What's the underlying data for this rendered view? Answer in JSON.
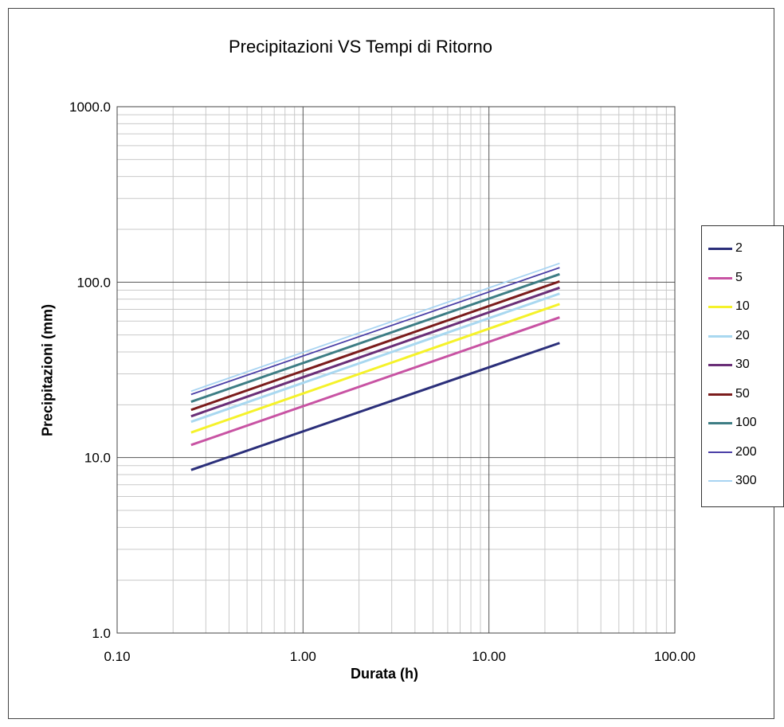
{
  "chart_data": {
    "type": "line",
    "title": "Precipitazioni VS Tempi di Ritorno",
    "xlabel": "Durata (h)",
    "ylabel": "Precipitazioni  (mm)",
    "x_scale": "log",
    "y_scale": "log",
    "xlim": [
      0.1,
      100
    ],
    "ylim": [
      1,
      1000
    ],
    "x_ticks": [
      "0.10",
      "1.00",
      "10.00",
      "100.00"
    ],
    "y_ticks": [
      "1.0",
      "10.0",
      "100.0",
      "1000.0"
    ],
    "grid": true,
    "legend_position": "right",
    "x": [
      0.25,
      24
    ],
    "series": [
      {
        "name": "2",
        "color": "#2b2f7a",
        "values": [
          8.5,
          45
        ]
      },
      {
        "name": "5",
        "color": "#c853a3",
        "values": [
          11.8,
          63
        ]
      },
      {
        "name": "10",
        "color": "#f5f22a",
        "values": [
          13.9,
          75
        ]
      },
      {
        "name": "20",
        "color": "#a9d8f0",
        "values": [
          16,
          86
        ]
      },
      {
        "name": "30",
        "color": "#6a2f78",
        "values": [
          17.2,
          93
        ]
      },
      {
        "name": "50",
        "color": "#7b1c1c",
        "values": [
          18.7,
          101
        ]
      },
      {
        "name": "100",
        "color": "#3d7d84",
        "values": [
          20.8,
          111
        ]
      },
      {
        "name": "200",
        "color": "#4a3fa6",
        "values": [
          22.9,
          121
        ]
      },
      {
        "name": "300",
        "color": "#a8d4f2",
        "values": [
          23.9,
          128
        ]
      }
    ]
  }
}
